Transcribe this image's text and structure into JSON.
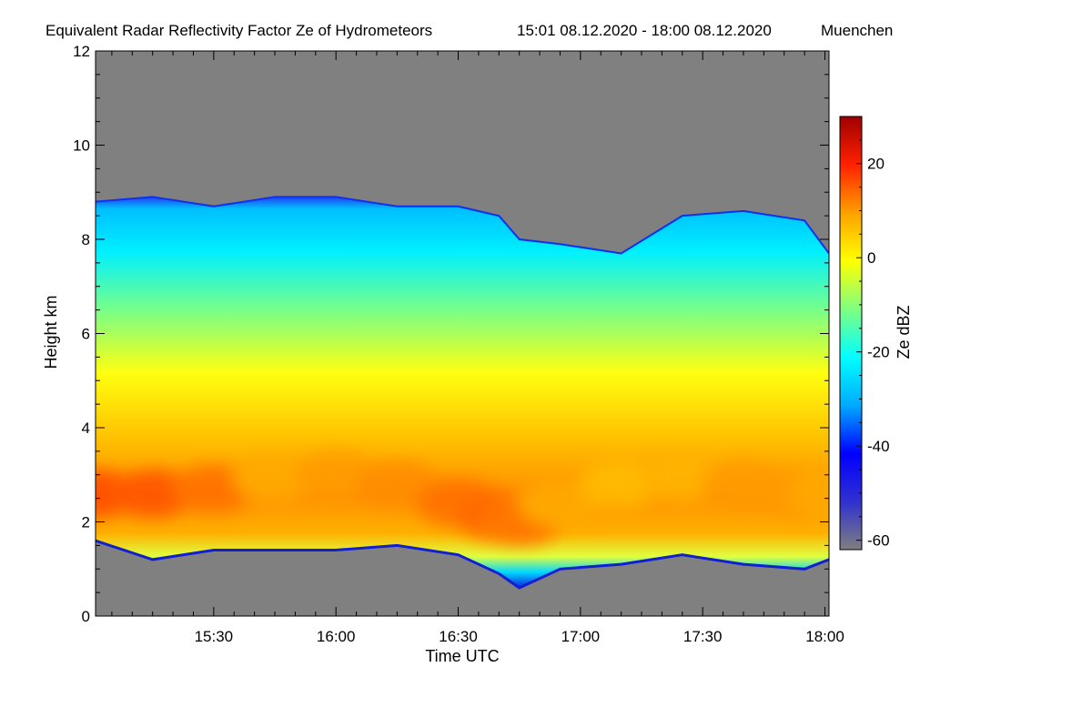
{
  "chart_data": {
    "type": "heatmap",
    "title": "Equivalent Radar Reflectivity Factor Ze of Hydrometeors",
    "period": "15:01 08.12.2020 - 18:00 08.12.2020",
    "location": "Muenchen",
    "xlabel": "Time UTC",
    "ylabel": "Height km",
    "x_range_minutes": [
      901,
      1081
    ],
    "x_ticks": [
      {
        "label": "15:30",
        "value": 930
      },
      {
        "label": "16:00",
        "value": 960
      },
      {
        "label": "16:30",
        "value": 990
      },
      {
        "label": "17:00",
        "value": 1020
      },
      {
        "label": "17:30",
        "value": 1050
      },
      {
        "label": "18:00",
        "value": 1080
      }
    ],
    "y_range_km": [
      0,
      12
    ],
    "y_ticks": [
      {
        "label": "0",
        "value": 0
      },
      {
        "label": "2",
        "value": 2
      },
      {
        "label": "4",
        "value": 4
      },
      {
        "label": "6",
        "value": 6
      },
      {
        "label": "8",
        "value": 8
      },
      {
        "label": "10",
        "value": 10
      },
      {
        "label": "12",
        "value": 12
      }
    ],
    "colorbar": {
      "label": "Ze dBZ",
      "range": [
        -62,
        30
      ],
      "ticks": [
        {
          "label": "20",
          "value": 20
        },
        {
          "label": "0",
          "value": 0
        },
        {
          "label": "-20",
          "value": -20
        },
        {
          "label": "-40",
          "value": -40
        },
        {
          "label": "-60",
          "value": -60
        }
      ],
      "colors": [
        "#7f7f7f",
        "#3030d0",
        "#0000ff",
        "#00aaff",
        "#00ffff",
        "#80ff80",
        "#ffff00",
        "#ffa000",
        "#ff2000",
        "#a00000"
      ],
      "no_signal_color": "#808080"
    },
    "cloud_structure": {
      "note": "approximate echo extent read from the image",
      "time_minutes": [
        901,
        915,
        930,
        945,
        960,
        975,
        990,
        1000,
        1005,
        1015,
        1030,
        1045,
        1060,
        1075,
        1081
      ],
      "cloud_top_km": [
        8.8,
        8.9,
        8.7,
        8.9,
        8.9,
        8.7,
        8.7,
        8.5,
        8.0,
        7.9,
        7.7,
        8.5,
        8.6,
        8.4,
        7.7
      ],
      "cloud_base_km": [
        1.6,
        1.2,
        1.4,
        1.4,
        1.4,
        1.5,
        1.3,
        0.9,
        0.6,
        1.0,
        1.1,
        1.3,
        1.1,
        1.0,
        1.2
      ],
      "max_reflectivity_height_km": [
        2.6,
        2.6,
        2.7,
        2.9,
        3.0,
        2.8,
        2.4,
        2.1,
        2.0,
        2.4,
        2.8,
        2.9,
        2.8,
        2.6,
        2.6
      ],
      "max_reflectivity_dbz": [
        15,
        14,
        12,
        8,
        9,
        10,
        12,
        13,
        12,
        8,
        6,
        7,
        9,
        9,
        8
      ]
    }
  }
}
